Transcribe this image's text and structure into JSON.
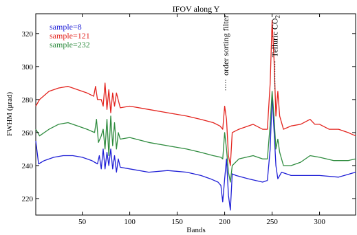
{
  "chart_data": {
    "type": "line",
    "title": "IFOV along Y",
    "xlabel": "Bands",
    "ylabel": "FWHM (μrad)",
    "xlim": [
      1,
      338
    ],
    "ylim": [
      210,
      332
    ],
    "xticks": [
      50,
      100,
      150,
      200,
      250,
      300
    ],
    "yticks": [
      220,
      240,
      260,
      280,
      300,
      320
    ],
    "legend_position": "top-left",
    "annotations": [
      {
        "text": "order sorting filter",
        "x": 201
      },
      {
        "text": "Telluric CO",
        "sub": "2",
        "x": 253
      }
    ],
    "series": [
      {
        "name": "sample=8",
        "color": "#1f1fd6",
        "points": [
          [
            1,
            255
          ],
          [
            4,
            241
          ],
          [
            10,
            243
          ],
          [
            20,
            245
          ],
          [
            30,
            246
          ],
          [
            40,
            246
          ],
          [
            50,
            245
          ],
          [
            60,
            243
          ],
          [
            66,
            241
          ],
          [
            68,
            246
          ],
          [
            70,
            238
          ],
          [
            72,
            250
          ],
          [
            74,
            238
          ],
          [
            76,
            248
          ],
          [
            78,
            240
          ],
          [
            80,
            250
          ],
          [
            82,
            238
          ],
          [
            84,
            246
          ],
          [
            86,
            236
          ],
          [
            88,
            244
          ],
          [
            90,
            239
          ],
          [
            100,
            238
          ],
          [
            120,
            236
          ],
          [
            140,
            237
          ],
          [
            160,
            236
          ],
          [
            175,
            234
          ],
          [
            185,
            232
          ],
          [
            193,
            230
          ],
          [
            196,
            228
          ],
          [
            198,
            218
          ],
          [
            200,
            232
          ],
          [
            202,
            244
          ],
          [
            204,
            222
          ],
          [
            206,
            213
          ],
          [
            208,
            235
          ],
          [
            212,
            234
          ],
          [
            225,
            232
          ],
          [
            240,
            230
          ],
          [
            245,
            231
          ],
          [
            248,
            250
          ],
          [
            250,
            283
          ],
          [
            252,
            262
          ],
          [
            254,
            240
          ],
          [
            256,
            232
          ],
          [
            260,
            236
          ],
          [
            270,
            234
          ],
          [
            290,
            234
          ],
          [
            300,
            234
          ],
          [
            320,
            233
          ],
          [
            338,
            236
          ]
        ]
      },
      {
        "name": "sample=121",
        "color": "#e3231d",
        "points": [
          [
            1,
            276
          ],
          [
            5,
            280
          ],
          [
            15,
            285
          ],
          [
            25,
            287
          ],
          [
            35,
            288
          ],
          [
            45,
            286
          ],
          [
            55,
            284
          ],
          [
            62,
            282
          ],
          [
            64,
            288
          ],
          [
            66,
            280
          ],
          [
            70,
            280
          ],
          [
            72,
            276
          ],
          [
            74,
            290
          ],
          [
            76,
            274
          ],
          [
            78,
            286
          ],
          [
            80,
            272
          ],
          [
            82,
            284
          ],
          [
            84,
            276
          ],
          [
            86,
            284
          ],
          [
            90,
            275
          ],
          [
            100,
            276
          ],
          [
            120,
            274
          ],
          [
            140,
            272
          ],
          [
            160,
            270
          ],
          [
            175,
            268
          ],
          [
            188,
            266
          ],
          [
            195,
            264
          ],
          [
            198,
            262
          ],
          [
            200,
            276
          ],
          [
            202,
            268
          ],
          [
            204,
            246
          ],
          [
            206,
            240
          ],
          [
            208,
            260
          ],
          [
            215,
            262
          ],
          [
            230,
            265
          ],
          [
            240,
            262
          ],
          [
            245,
            262
          ],
          [
            248,
            290
          ],
          [
            250,
            328
          ],
          [
            252,
            305
          ],
          [
            254,
            270
          ],
          [
            256,
            285
          ],
          [
            258,
            270
          ],
          [
            262,
            262
          ],
          [
            270,
            264
          ],
          [
            280,
            265
          ],
          [
            290,
            268
          ],
          [
            295,
            265
          ],
          [
            300,
            265
          ],
          [
            310,
            262
          ],
          [
            320,
            262
          ],
          [
            330,
            260
          ],
          [
            338,
            258
          ]
        ]
      },
      {
        "name": "sample=232",
        "color": "#2e8b3e",
        "points": [
          [
            1,
            262
          ],
          [
            5,
            258
          ],
          [
            15,
            262
          ],
          [
            25,
            265
          ],
          [
            35,
            266
          ],
          [
            45,
            264
          ],
          [
            55,
            262
          ],
          [
            63,
            260
          ],
          [
            65,
            268
          ],
          [
            67,
            254
          ],
          [
            70,
            258
          ],
          [
            72,
            262
          ],
          [
            74,
            250
          ],
          [
            76,
            268
          ],
          [
            78,
            246
          ],
          [
            80,
            270
          ],
          [
            82,
            252
          ],
          [
            84,
            266
          ],
          [
            86,
            250
          ],
          [
            88,
            260
          ],
          [
            90,
            256
          ],
          [
            100,
            257
          ],
          [
            120,
            254
          ],
          [
            140,
            252
          ],
          [
            160,
            250
          ],
          [
            175,
            248
          ],
          [
            188,
            246
          ],
          [
            196,
            245
          ],
          [
            198,
            244
          ],
          [
            200,
            260
          ],
          [
            202,
            250
          ],
          [
            204,
            236
          ],
          [
            206,
            230
          ],
          [
            208,
            240
          ],
          [
            215,
            244
          ],
          [
            230,
            246
          ],
          [
            240,
            244
          ],
          [
            245,
            244
          ],
          [
            248,
            265
          ],
          [
            250,
            285
          ],
          [
            252,
            270
          ],
          [
            254,
            250
          ],
          [
            256,
            256
          ],
          [
            258,
            248
          ],
          [
            262,
            240
          ],
          [
            270,
            240
          ],
          [
            280,
            242
          ],
          [
            290,
            246
          ],
          [
            300,
            245
          ],
          [
            315,
            243
          ],
          [
            330,
            243
          ],
          [
            338,
            244
          ]
        ]
      }
    ]
  }
}
